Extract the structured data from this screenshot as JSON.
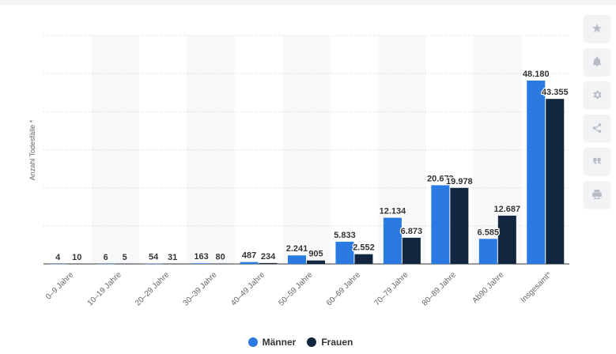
{
  "chart_data": {
    "type": "bar",
    "categories": [
      "0–9 Jahre",
      "10–19 Jahre",
      "20–29 Jahre",
      "30–39 Jahre",
      "40–49 Jahre",
      "50–59 Jahre",
      "60–69 Jahre",
      "70–79 Jahre",
      "80–89 Jahre",
      "Ab90 Jahre",
      "Insgesamt*"
    ],
    "series": [
      {
        "name": "Männer",
        "color": "#2a7ae2",
        "values": [
          4,
          6,
          54,
          163,
          487,
          2241,
          5833,
          12134,
          20673,
          6585,
          48180
        ],
        "labels": [
          "4",
          "6",
          "54",
          "163",
          "487",
          "2.241",
          "5.833",
          "12.134",
          "20.673",
          "6.585",
          "48.180"
        ]
      },
      {
        "name": "Frauen",
        "color": "#12263f",
        "values": [
          10,
          5,
          31,
          80,
          234,
          905,
          2552,
          6873,
          19978,
          12687,
          43355
        ],
        "labels": [
          "10",
          "5",
          "31",
          "80",
          "234",
          "905",
          "2.552",
          "6.873",
          "19.978",
          "12.687",
          "43.355"
        ]
      }
    ],
    "xlabel": "",
    "ylabel": "Anzahl Todesfälle *",
    "ylim": [
      0,
      60000
    ],
    "grid": true,
    "legend": "bottom-center"
  },
  "toolbar": {
    "icons": [
      "star-icon",
      "bell-icon",
      "gear-icon",
      "share-icon",
      "quote-icon",
      "print-icon"
    ]
  }
}
